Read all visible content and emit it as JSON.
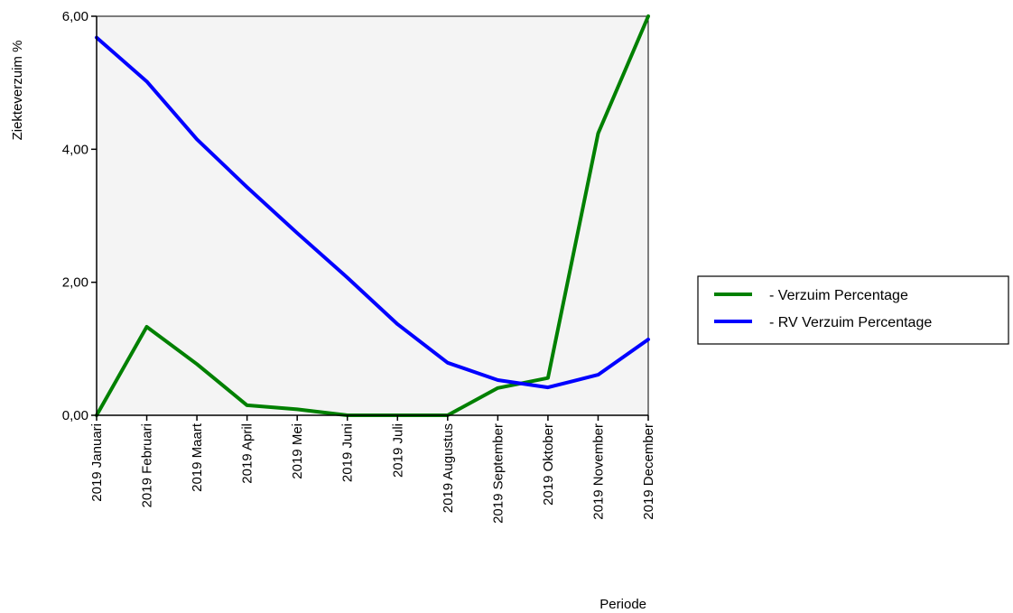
{
  "chart_data": {
    "type": "line",
    "title": "",
    "xlabel": "Periode",
    "ylabel": "Ziekteverzuim %",
    "categories": [
      "2019 Januari",
      "2019 Februari",
      "2019 Maart",
      "2019 April",
      "2019 Mei",
      "2019 Juni",
      "2019 Juli",
      "2019 Augustus",
      "2019 September",
      "2019 Oktober",
      "2019 November",
      "2019 December"
    ],
    "ylim": [
      0,
      6
    ],
    "yticks": [
      0,
      2,
      4,
      6
    ],
    "ytick_labels": [
      "0,00",
      "2,00",
      "4,00",
      "6,00"
    ],
    "grid": false,
    "legend_position": "right",
    "series": [
      {
        "name": "- Verzuim Percentage",
        "color": "#008000",
        "values": [
          0.0,
          1.33,
          0.77,
          0.15,
          0.09,
          0.0,
          0.0,
          0.0,
          0.41,
          0.56,
          4.24,
          6.0
        ]
      },
      {
        "name": "- RV Verzuim Percentage",
        "color": "#0000ff",
        "values": [
          5.68,
          5.02,
          4.15,
          3.43,
          2.74,
          2.07,
          1.37,
          0.79,
          0.53,
          0.42,
          0.61,
          1.14
        ]
      }
    ]
  },
  "colors": {
    "plot_background": "#f4f4f4",
    "axis": "#000000"
  }
}
